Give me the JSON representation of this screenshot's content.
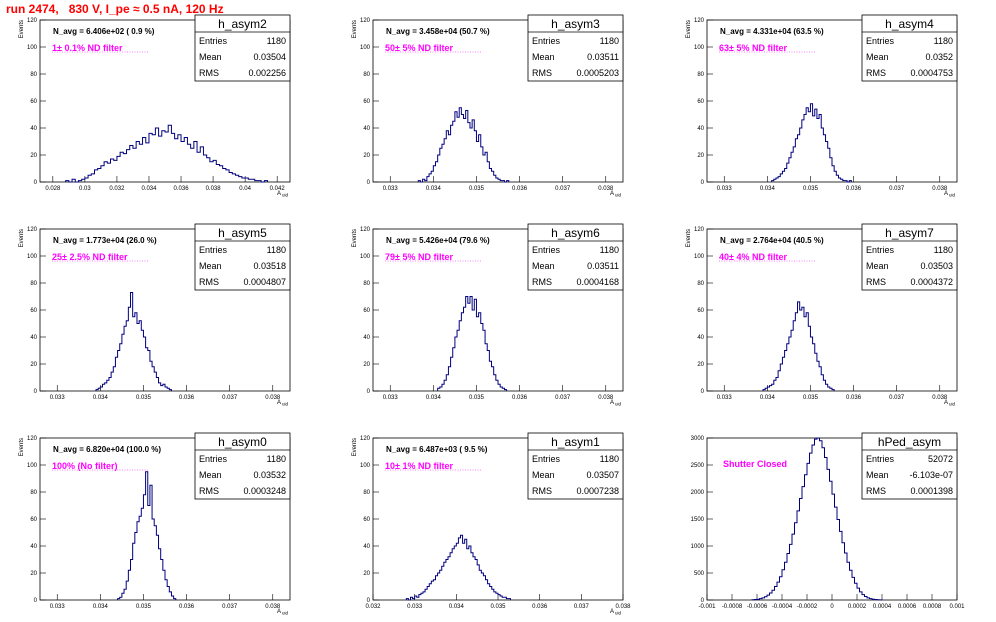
{
  "page": {
    "title": "run 2474,   830 V, I_pe ≈ 0.5 nA, 120 Hz"
  },
  "colors": {
    "title": "#ff0000",
    "annotation": "#ff00ff",
    "histogram": "#00007f",
    "axis": "#000000",
    "background": "#ffffff"
  },
  "chart_data": [
    {
      "type": "histogram",
      "name": "h_asym2",
      "stats": {
        "entries": "1180",
        "mean": "0.03504",
        "rms": "0.002256"
      },
      "navg": "N_avg = 6.406e+02 ( 0.9 %)",
      "label": "1± 0.1% ND filter",
      "xlabel": "A_uid",
      "ylabel": "Events",
      "xlim": [
        0.0272,
        0.0428
      ],
      "ylim": [
        0,
        120
      ],
      "xticks": [
        0.028,
        0.03,
        0.032,
        0.034,
        0.036,
        0.038,
        0.04,
        0.042
      ],
      "xtick_labels": [
        "0.028",
        "0.03",
        "0.032",
        "0.034",
        "0.036",
        "0.038",
        "0.04",
        "0.042"
      ],
      "yticks": [
        0,
        20,
        40,
        60,
        80,
        100,
        120
      ],
      "bins": {
        "x0": 0.0288,
        "width": 0.0002,
        "counts": [
          1,
          0,
          2,
          0,
          1,
          2,
          3,
          5,
          6,
          9,
          10,
          12,
          15,
          14,
          17,
          16,
          19,
          22,
          21,
          24,
          27,
          25,
          30,
          28,
          33,
          29,
          36,
          35,
          40,
          34,
          38,
          37,
          42,
          36,
          32,
          35,
          30,
          33,
          28,
          25,
          30,
          22,
          26,
          20,
          18,
          15,
          16,
          13,
          12,
          10,
          9,
          7,
          6,
          5,
          4,
          3,
          3,
          2,
          2,
          1,
          1,
          0,
          1
        ]
      }
    },
    {
      "type": "histogram",
      "name": "h_asym3",
      "stats": {
        "entries": "1180",
        "mean": "0.03511",
        "rms": "0.0005203"
      },
      "navg": "N_avg = 3.458e+04 (50.7 %)",
      "label": "50± 5% ND filter",
      "xlabel": "A_uid",
      "ylabel": "Events",
      "xlim": [
        0.0326,
        0.0384
      ],
      "ylim": [
        0,
        120
      ],
      "xticks": [
        0.033,
        0.034,
        0.035,
        0.036,
        0.037,
        0.038
      ],
      "xtick_labels": [
        "0.033",
        "0.034",
        "0.035",
        "0.036",
        "0.037",
        "0.038"
      ],
      "yticks": [
        0,
        20,
        40,
        60,
        80,
        100,
        120
      ],
      "bins": {
        "x0": 0.03365,
        "width": 5e-05,
        "counts": [
          1,
          0,
          2,
          1,
          4,
          6,
          8,
          12,
          15,
          20,
          25,
          28,
          32,
          38,
          35,
          42,
          45,
          52,
          48,
          55,
          50,
          47,
          53,
          44,
          40,
          46,
          38,
          30,
          35,
          26,
          20,
          22,
          15,
          10,
          8,
          5,
          3,
          2,
          1,
          1,
          0,
          1
        ]
      }
    },
    {
      "type": "histogram",
      "name": "h_asym4",
      "stats": {
        "entries": "1180",
        "mean": "0.0352",
        "rms": "0.0004753"
      },
      "navg": "N_avg = 4.331e+04 (63.5 %)",
      "label": "63± 5% ND filter",
      "xlabel": "A_uid",
      "ylabel": "Events",
      "xlim": [
        0.0326,
        0.0384
      ],
      "ylim": [
        0,
        120
      ],
      "xticks": [
        0.033,
        0.034,
        0.035,
        0.036,
        0.037,
        0.038
      ],
      "xtick_labels": [
        "0.033",
        "0.034",
        "0.035",
        "0.036",
        "0.037",
        "0.038"
      ],
      "yticks": [
        0,
        20,
        40,
        60,
        80,
        100,
        120
      ],
      "bins": {
        "x0": 0.0341,
        "width": 5e-05,
        "counts": [
          1,
          2,
          3,
          4,
          6,
          8,
          10,
          14,
          18,
          22,
          26,
          32,
          35,
          40,
          46,
          50,
          55,
          52,
          58,
          49,
          54,
          47,
          50,
          40,
          35,
          30,
          25,
          18,
          12,
          8,
          5,
          3,
          2,
          1,
          1,
          0,
          1
        ]
      }
    },
    {
      "type": "histogram",
      "name": "h_asym5",
      "stats": {
        "entries": "1180",
        "mean": "0.03518",
        "rms": "0.0004807"
      },
      "navg": "N_avg = 1.773e+04 (26.0 %)",
      "label": "25± 2.5% ND filter",
      "xlabel": "A_uid",
      "ylabel": "Events",
      "xlim": [
        0.0326,
        0.0384
      ],
      "ylim": [
        0,
        120
      ],
      "xticks": [
        0.033,
        0.034,
        0.035,
        0.036,
        0.037,
        0.038
      ],
      "xtick_labels": [
        "0.033",
        "0.034",
        "0.035",
        "0.036",
        "0.037",
        "0.038"
      ],
      "yticks": [
        0,
        20,
        40,
        60,
        80,
        100,
        120
      ],
      "bins": {
        "x0": 0.0339,
        "width": 5e-05,
        "counts": [
          1,
          2,
          3,
          5,
          6,
          8,
          10,
          14,
          18,
          25,
          30,
          35,
          42,
          48,
          52,
          62,
          73,
          55,
          58,
          50,
          52,
          45,
          40,
          32,
          30,
          22,
          18,
          14,
          10,
          6,
          4,
          5,
          3,
          2,
          1
        ]
      }
    },
    {
      "type": "histogram",
      "name": "h_asym6",
      "stats": {
        "entries": "1180",
        "mean": "0.03511",
        "rms": "0.0004168"
      },
      "navg": "N_avg = 5.426e+04 (79.6 %)",
      "label": "79± 5% ND filter",
      "xlabel": "A_uid",
      "ylabel": "Events",
      "xlim": [
        0.0326,
        0.0384
      ],
      "ylim": [
        0,
        120
      ],
      "xticks": [
        0.033,
        0.034,
        0.035,
        0.036,
        0.037,
        0.038
      ],
      "xtick_labels": [
        "0.033",
        "0.034",
        "0.035",
        "0.036",
        "0.037",
        "0.038"
      ],
      "yticks": [
        0,
        20,
        40,
        60,
        80,
        100,
        120
      ],
      "bins": {
        "x0": 0.0341,
        "width": 5e-05,
        "counts": [
          2,
          3,
          5,
          8,
          12,
          18,
          25,
          32,
          40,
          45,
          52,
          58,
          62,
          70,
          65,
          70,
          60,
          68,
          55,
          58,
          50,
          45,
          35,
          30,
          22,
          18,
          12,
          8,
          5,
          3,
          2,
          1
        ]
      }
    },
    {
      "type": "histogram",
      "name": "h_asym7",
      "stats": {
        "entries": "1180",
        "mean": "0.03503",
        "rms": "0.0004372"
      },
      "navg": "N_avg = 2.764e+04 (40.5 %)",
      "label": "40± 4% ND filter",
      "xlabel": "A_uid",
      "ylabel": "Events",
      "xlim": [
        0.0326,
        0.0384
      ],
      "ylim": [
        0,
        120
      ],
      "xticks": [
        0.033,
        0.034,
        0.035,
        0.036,
        0.037,
        0.038
      ],
      "xtick_labels": [
        "0.033",
        "0.034",
        "0.035",
        "0.036",
        "0.037",
        "0.038"
      ],
      "yticks": [
        0,
        20,
        40,
        60,
        80,
        100,
        120
      ],
      "bins": {
        "x0": 0.0339,
        "width": 5e-05,
        "counts": [
          1,
          2,
          3,
          4,
          5,
          8,
          10,
          15,
          20,
          25,
          30,
          35,
          40,
          45,
          52,
          58,
          66,
          60,
          62,
          55,
          58,
          48,
          40,
          35,
          28,
          22,
          18,
          12,
          8,
          5,
          3,
          2,
          1
        ]
      }
    },
    {
      "type": "histogram",
      "name": "h_asym0",
      "stats": {
        "entries": "1180",
        "mean": "0.03532",
        "rms": "0.0003248"
      },
      "navg": "N_avg = 6.820e+04 (100.0 %)",
      "label": "100% (No filter)",
      "xlabel": "A_uid",
      "ylabel": "Events",
      "xlim": [
        0.0326,
        0.0384
      ],
      "ylim": [
        0,
        120
      ],
      "xticks": [
        0.033,
        0.034,
        0.035,
        0.036,
        0.037,
        0.038
      ],
      "xtick_labels": [
        "0.033",
        "0.034",
        "0.035",
        "0.036",
        "0.037",
        "0.038"
      ],
      "yticks": [
        0,
        20,
        40,
        60,
        80,
        100,
        120
      ],
      "bins": {
        "x0": 0.0344,
        "width": 5e-05,
        "counts": [
          1,
          2,
          5,
          8,
          14,
          22,
          30,
          42,
          50,
          58,
          62,
          68,
          78,
          95,
          70,
          85,
          60,
          55,
          48,
          38,
          30,
          22,
          15,
          10,
          6,
          3,
          1
        ]
      }
    },
    {
      "type": "histogram",
      "name": "h_asym1",
      "stats": {
        "entries": "1180",
        "mean": "0.03507",
        "rms": "0.0007238"
      },
      "navg": "N_avg = 6.487e+03 ( 9.5 %)",
      "label": "10± 1% ND filter",
      "xlabel": "A_uid",
      "ylabel": "Events",
      "xlim": [
        0.032,
        0.038
      ],
      "ylim": [
        0,
        120
      ],
      "xticks": [
        0.032,
        0.033,
        0.034,
        0.035,
        0.036,
        0.037,
        0.038
      ],
      "xtick_labels": [
        "0.032",
        "0.033",
        "0.034",
        "0.035",
        "0.036",
        "0.037",
        "0.038"
      ],
      "yticks": [
        0,
        20,
        40,
        60,
        80,
        100,
        120
      ],
      "bins": {
        "x0": 0.0328,
        "width": 5e-05,
        "counts": [
          1,
          0,
          2,
          1,
          3,
          2,
          4,
          5,
          6,
          8,
          10,
          12,
          14,
          15,
          18,
          20,
          22,
          25,
          28,
          30,
          32,
          35,
          38,
          40,
          42,
          46,
          48,
          42,
          45,
          38,
          40,
          35,
          32,
          30,
          26,
          22,
          20,
          18,
          15,
          12,
          10,
          8,
          6,
          5,
          4,
          3,
          2,
          2,
          1,
          1
        ]
      }
    },
    {
      "type": "histogram",
      "name": "hPed_asym",
      "stats": {
        "entries": "52072",
        "mean": "-6.103e-07",
        "rms": "0.0001398"
      },
      "navg": "",
      "label": "Shutter Closed",
      "xlabel": "",
      "ylabel": "",
      "xlim": [
        -0.001,
        0.001
      ],
      "ylim": [
        0,
        3000
      ],
      "xticks": [
        -0.001,
        -0.0008,
        -0.0006,
        -0.0004,
        -0.0002,
        0,
        0.0002,
        0.0004,
        0.0006,
        0.0008,
        0.001
      ],
      "xtick_labels": [
        "-0.001",
        "-0.0008",
        "-0.0006",
        "-0.0004",
        "-0.0002",
        "0",
        "0.0002",
        "0.0004",
        "0.0006",
        "0.0008",
        "0.001"
      ],
      "yticks": [
        0,
        500,
        1000,
        1500,
        2000,
        2500,
        3000
      ],
      "bins": {
        "x0": -0.00064,
        "width": 2e-05,
        "counts": [
          5,
          10,
          15,
          25,
          40,
          60,
          90,
          130,
          180,
          250,
          330,
          430,
          560,
          700,
          860,
          1030,
          1220,
          1430,
          1650,
          1880,
          2100,
          2320,
          2530,
          2720,
          2870,
          2980,
          3000,
          2950,
          2820,
          2640,
          2420,
          2200,
          1960,
          1720,
          1490,
          1270,
          1060,
          870,
          700,
          550,
          420,
          310,
          220,
          150,
          100,
          65,
          40,
          25,
          15,
          10,
          5,
          3
        ]
      }
    }
  ]
}
